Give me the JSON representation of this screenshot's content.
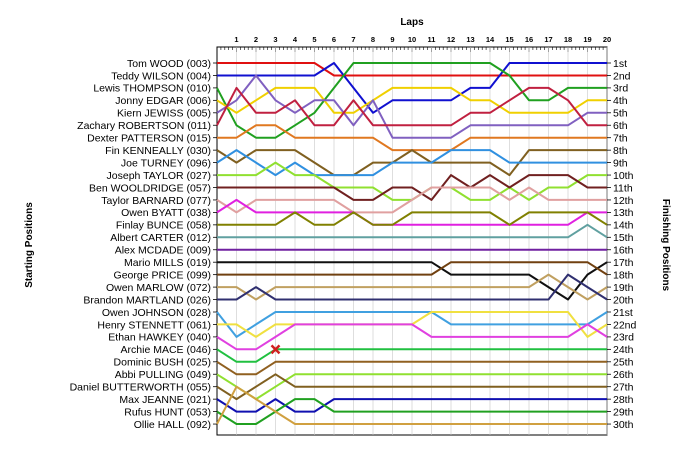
{
  "chart_data": {
    "type": "line",
    "title": "Laps",
    "left_axis_label": "Starting Positions",
    "right_axis_label": "Finishing Positions",
    "laps": [
      1,
      2,
      3,
      4,
      5,
      6,
      7,
      8,
      9,
      10,
      11,
      12,
      13,
      14,
      15,
      16,
      17,
      18,
      19,
      20
    ],
    "drivers": [
      "Tom WOOD (003)",
      "Teddy WILSON (004)",
      "Lewis THOMPSON (010)",
      "Jonny EDGAR (006)",
      "Kiern JEWISS (005)",
      "Zachary ROBERTSON (011)",
      "Dexter PATTERSON (015)",
      "Fin KENNEALLY (030)",
      "Joe TURNEY (096)",
      "Joseph TAYLOR (027)",
      "Ben WOOLDRIDGE (057)",
      "Taylor BARNARD (077)",
      "Owen BYATT (038)",
      "Finlay BUNCE (058)",
      "Albert CARTER (012)",
      "Alex MCDADE (009)",
      "Mario MILLS (019)",
      "George PRICE (099)",
      "Owen MARLOW (072)",
      "Brandon MARTLAND (026)",
      "Owen JOHNSON (028)",
      "Henry STENNETT (061)",
      "Ethan HAWKEY (040)",
      "Archie MACE (046)",
      "Dominic BUSH (025)",
      "Abbi PULLING (049)",
      "Daniel BUTTERWORTH (055)",
      "Max JEANNE (021)",
      "Rufus HUNT (053)",
      "Ollie HALL (092)"
    ],
    "finishing_positions": [
      "1st",
      "2nd",
      "3rd",
      "4th",
      "5th",
      "6th",
      "7th",
      "8th",
      "9th",
      "10th",
      "11th",
      "12th",
      "13th",
      "14th",
      "15th",
      "16th",
      "17th",
      "18th",
      "19th",
      "20th",
      "21st",
      "22nd",
      "23rd",
      "24th",
      "25th",
      "26th",
      "27th",
      "28th",
      "29th",
      "30th"
    ],
    "series": [
      {
        "color": "#e01010",
        "start": 1,
        "positions": [
          1,
          1,
          1,
          1,
          1,
          2,
          2,
          2,
          2,
          2,
          2,
          2,
          2,
          2,
          2,
          2,
          2,
          2,
          2,
          2
        ]
      },
      {
        "color": "#1010d0",
        "start": 2,
        "positions": [
          2,
          2,
          2,
          2,
          2,
          1,
          3,
          5,
          4,
          4,
          4,
          4,
          3,
          3,
          1,
          1,
          1,
          1,
          1,
          1
        ]
      },
      {
        "color": "#20a020",
        "start": 3,
        "positions": [
          6,
          7,
          7,
          6,
          5,
          3,
          1,
          1,
          1,
          1,
          1,
          1,
          1,
          1,
          2,
          4,
          4,
          3,
          3,
          3
        ]
      },
      {
        "color": "#f0d000",
        "start": 4,
        "positions": [
          5,
          4,
          3,
          3,
          3,
          5,
          5,
          4,
          3,
          3,
          3,
          3,
          4,
          4,
          5,
          5,
          5,
          5,
          4,
          4
        ]
      },
      {
        "color": "#8060c0",
        "start": 5,
        "positions": [
          4,
          2,
          4,
          5,
          4,
          4,
          6,
          4,
          7,
          7,
          7,
          7,
          6,
          6,
          6,
          6,
          6,
          6,
          5,
          5
        ]
      },
      {
        "color": "#c02040",
        "start": 6,
        "positions": [
          3,
          5,
          5,
          4,
          6,
          6,
          4,
          6,
          6,
          6,
          6,
          6,
          5,
          5,
          4,
          3,
          3,
          4,
          6,
          6
        ]
      },
      {
        "color": "#e07820",
        "start": 7,
        "positions": [
          7,
          6,
          6,
          7,
          7,
          7,
          7,
          7,
          8,
          8,
          8,
          8,
          7,
          7,
          7,
          7,
          7,
          7,
          7,
          7
        ]
      },
      {
        "color": "#806020",
        "start": 8,
        "positions": [
          9,
          8,
          8,
          8,
          9,
          10,
          10,
          9,
          9,
          8,
          9,
          9,
          9,
          9,
          10,
          8,
          8,
          8,
          8,
          8
        ]
      },
      {
        "color": "#3090e0",
        "start": 9,
        "positions": [
          8,
          9,
          10,
          9,
          10,
          10,
          10,
          10,
          9,
          9,
          9,
          8,
          8,
          8,
          9,
          9,
          9,
          9,
          9,
          9
        ]
      },
      {
        "color": "#90e030",
        "start": 10,
        "positions": [
          10,
          10,
          9,
          10,
          10,
          11,
          11,
          11,
          12,
          12,
          11,
          11,
          12,
          12,
          11,
          12,
          11,
          11,
          10,
          10
        ]
      },
      {
        "color": "#702020",
        "start": 11,
        "positions": [
          11,
          11,
          11,
          11,
          11,
          11,
          12,
          12,
          11,
          11,
          12,
          10,
          11,
          10,
          11,
          10,
          10,
          10,
          11,
          11
        ]
      },
      {
        "color": "#e0a0a0",
        "start": 12,
        "positions": [
          13,
          12,
          12,
          12,
          12,
          12,
          13,
          13,
          13,
          12,
          11,
          11,
          11,
          11,
          12,
          11,
          12,
          12,
          12,
          12
        ]
      },
      {
        "color": "#e020e0",
        "start": 13,
        "positions": [
          12,
          13,
          13,
          13,
          13,
          13,
          13,
          14,
          14,
          14,
          14,
          14,
          14,
          14,
          14,
          14,
          14,
          14,
          13,
          13
        ]
      },
      {
        "color": "#808000",
        "start": 14,
        "positions": [
          14,
          14,
          14,
          13,
          14,
          14,
          13,
          14,
          14,
          13,
          13,
          13,
          13,
          13,
          14,
          13,
          13,
          13,
          13,
          14
        ]
      },
      {
        "color": "#60a0a0",
        "start": 15,
        "positions": [
          15,
          15,
          15,
          15,
          15,
          15,
          15,
          15,
          15,
          15,
          15,
          15,
          15,
          15,
          15,
          15,
          15,
          15,
          14,
          15
        ]
      },
      {
        "color": "#7020a0",
        "start": 16,
        "positions": [
          16,
          16,
          16,
          16,
          16,
          16,
          16,
          16,
          16,
          16,
          16,
          16,
          16,
          16,
          16,
          16,
          16,
          16,
          16,
          16
        ]
      },
      {
        "color": "#101010",
        "start": 17,
        "positions": [
          17,
          17,
          17,
          17,
          17,
          17,
          17,
          17,
          17,
          17,
          17,
          18,
          18,
          18,
          18,
          18,
          19,
          20,
          18,
          17
        ]
      },
      {
        "color": "#704010",
        "start": 18,
        "positions": [
          18,
          18,
          18,
          18,
          18,
          18,
          18,
          18,
          18,
          18,
          18,
          17,
          17,
          17,
          17,
          17,
          17,
          17,
          17,
          18
        ]
      },
      {
        "color": "#c0a060",
        "start": 19,
        "positions": [
          19,
          20,
          19,
          19,
          19,
          19,
          19,
          19,
          19,
          19,
          19,
          19,
          19,
          19,
          19,
          19,
          18,
          19,
          20,
          19
        ]
      },
      {
        "color": "#303070",
        "start": 20,
        "positions": [
          20,
          19,
          20,
          20,
          20,
          20,
          20,
          20,
          20,
          20,
          20,
          20,
          20,
          20,
          20,
          20,
          20,
          18,
          19,
          20
        ]
      },
      {
        "color": "#40a0e0",
        "start": 21,
        "positions": [
          23,
          22,
          21,
          21,
          21,
          21,
          21,
          21,
          21,
          21,
          21,
          22,
          22,
          22,
          22,
          22,
          22,
          22,
          22,
          21
        ]
      },
      {
        "color": "#f0e040",
        "start": 22,
        "positions": [
          22,
          23,
          22,
          22,
          22,
          22,
          22,
          22,
          22,
          22,
          21,
          21,
          21,
          21,
          21,
          21,
          21,
          21,
          23,
          22
        ]
      },
      {
        "color": "#e040e0",
        "start": 23,
        "positions": [
          24,
          24,
          23,
          22,
          22,
          22,
          22,
          22,
          22,
          22,
          23,
          23,
          23,
          23,
          23,
          23,
          23,
          23,
          22,
          23
        ]
      },
      {
        "color": "#20c040",
        "start": 24,
        "positions": [
          25,
          25,
          24,
          24,
          24,
          24,
          24,
          24,
          24,
          24,
          24,
          24,
          24,
          24,
          24,
          24,
          24,
          24,
          24,
          24
        ]
      },
      {
        "color": "#906020",
        "start": 25,
        "positions": [
          26,
          26,
          25,
          25,
          25,
          25,
          25,
          25,
          25,
          25,
          25,
          25,
          25,
          25,
          25,
          25,
          25,
          25,
          25,
          25
        ]
      },
      {
        "color": "#90e030",
        "start": 26,
        "positions": [
          27,
          28,
          27,
          26,
          26,
          26,
          26,
          26,
          26,
          26,
          26,
          26,
          26,
          26,
          26,
          26,
          26,
          26,
          26,
          26
        ]
      },
      {
        "color": "#806020",
        "start": 27,
        "positions": [
          28,
          27,
          26,
          27,
          27,
          27,
          27,
          27,
          27,
          27,
          27,
          27,
          27,
          27,
          27,
          27,
          27,
          27,
          27,
          27
        ]
      },
      {
        "color": "#1010b0",
        "start": 28,
        "positions": [
          29,
          29,
          28,
          29,
          29,
          28,
          28,
          28,
          28,
          28,
          28,
          28,
          28,
          28,
          28,
          28,
          28,
          28,
          28,
          28
        ]
      },
      {
        "color": "#20a020",
        "start": 29,
        "positions": [
          30,
          30,
          29,
          28,
          28,
          29,
          29,
          29,
          29,
          29,
          29,
          29,
          29,
          29,
          29,
          29,
          29,
          29,
          29,
          29
        ]
      },
      {
        "color": "#d0a040",
        "start": 30,
        "positions": [
          27,
          28,
          29,
          30,
          30,
          30,
          30,
          30,
          30,
          30,
          30,
          30,
          30,
          30,
          30,
          30,
          30,
          30,
          30,
          30
        ]
      }
    ],
    "retirement_marker": {
      "lap": 3,
      "position": 24,
      "color": "#d02020"
    }
  }
}
